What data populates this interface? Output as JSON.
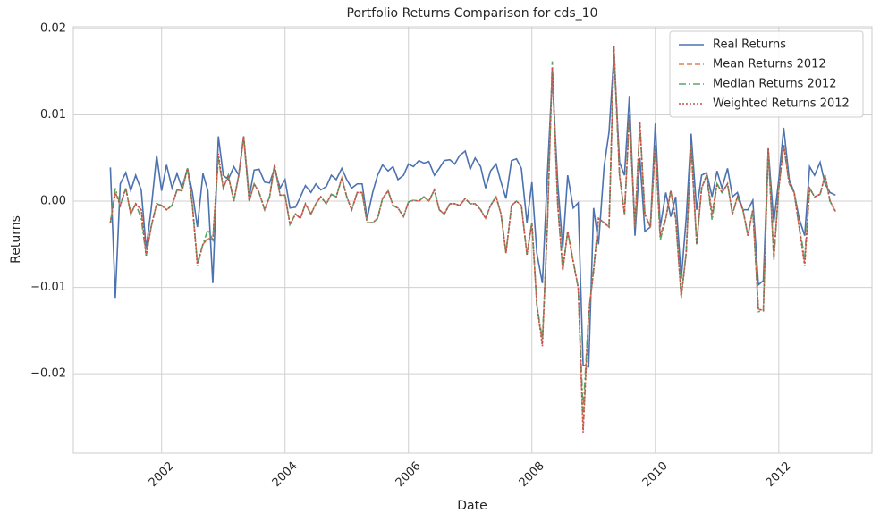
{
  "chart_data": {
    "type": "line",
    "title": "Portfolio Returns Comparison for cds_10",
    "x_label": "Date",
    "y_label": "Returns",
    "xlim": [
      2000.57,
      2013.51
    ],
    "xticks": [
      2002,
      2004,
      2006,
      2008,
      2010,
      2012
    ],
    "ylim": [
      -0.0292,
      0.0202
    ],
    "yticks": [
      {
        "value": -0.02,
        "label": "−0.02"
      },
      {
        "value": -0.01,
        "label": "−0.01"
      },
      {
        "value": 0,
        "label": "0.00"
      },
      0.01,
      0.02
    ],
    "grid": true,
    "legend": "upper right",
    "x": [
      2001.17,
      2001.25,
      2001.33,
      2001.42,
      2001.5,
      2001.58,
      2001.67,
      2001.75,
      2001.83,
      2001.92,
      2002.0,
      2002.08,
      2002.17,
      2002.25,
      2002.33,
      2002.42,
      2002.5,
      2002.58,
      2002.67,
      2002.75,
      2002.83,
      2002.92,
      2003.0,
      2003.08,
      2003.17,
      2003.25,
      2003.33,
      2003.42,
      2003.5,
      2003.58,
      2003.67,
      2003.75,
      2003.83,
      2003.92,
      2004.0,
      2004.08,
      2004.17,
      2004.25,
      2004.33,
      2004.42,
      2004.5,
      2004.58,
      2004.67,
      2004.75,
      2004.83,
      2004.92,
      2005.0,
      2005.08,
      2005.17,
      2005.25,
      2005.33,
      2005.42,
      2005.5,
      2005.58,
      2005.67,
      2005.75,
      2005.83,
      2005.92,
      2006.0,
      2006.08,
      2006.17,
      2006.25,
      2006.33,
      2006.42,
      2006.5,
      2006.58,
      2006.67,
      2006.75,
      2006.83,
      2006.92,
      2007.0,
      2007.08,
      2007.17,
      2007.25,
      2007.33,
      2007.42,
      2007.5,
      2007.58,
      2007.67,
      2007.75,
      2007.83,
      2007.92,
      2008.0,
      2008.08,
      2008.17,
      2008.25,
      2008.33,
      2008.42,
      2008.5,
      2008.58,
      2008.67,
      2008.75,
      2008.83,
      2008.92,
      2009.0,
      2009.08,
      2009.17,
      2009.25,
      2009.33,
      2009.42,
      2009.5,
      2009.58,
      2009.67,
      2009.75,
      2009.83,
      2009.92,
      2010.0,
      2010.08,
      2010.17,
      2010.25,
      2010.33,
      2010.42,
      2010.5,
      2010.58,
      2010.67,
      2010.75,
      2010.83,
      2010.92,
      2011.0,
      2011.08,
      2011.17,
      2011.25,
      2011.33,
      2011.42,
      2011.5,
      2011.58,
      2011.67,
      2011.75,
      2011.83,
      2011.92,
      2012.0,
      2012.08,
      2012.17,
      2012.25,
      2012.33,
      2012.42,
      2012.5,
      2012.58,
      2012.67,
      2012.75,
      2012.83,
      2012.92
    ],
    "series": [
      {
        "name": "Real Returns",
        "color": "#4c72b0",
        "dash": "none",
        "values": [
          0.0039,
          -0.0112,
          0.002,
          0.0033,
          0.0012,
          0.003,
          0.0013,
          -0.0055,
          -0.001,
          0.0053,
          0.0012,
          0.0042,
          0.0015,
          0.0032,
          0.0015,
          0.0038,
          0.001,
          -0.003,
          0.0032,
          0.0012,
          -0.0095,
          0.0075,
          0.003,
          0.0025,
          0.004,
          0.003,
          0.0075,
          0.0005,
          0.0036,
          0.0037,
          0.0022,
          0.0021,
          0.0038,
          0.0015,
          0.0025,
          -0.0008,
          -0.0007,
          0.0005,
          0.0018,
          0.001,
          0.002,
          0.0013,
          0.0017,
          0.003,
          0.0025,
          0.0038,
          0.0025,
          0.0015,
          0.002,
          0.002,
          -0.002,
          0.001,
          0.003,
          0.0042,
          0.0035,
          0.004,
          0.0025,
          0.003,
          0.0043,
          0.004,
          0.0047,
          0.0044,
          0.0046,
          0.003,
          0.0038,
          0.0047,
          0.0048,
          0.0043,
          0.0053,
          0.0058,
          0.0037,
          0.005,
          0.004,
          0.0015,
          0.0035,
          0.0043,
          0.0022,
          0.0003,
          0.0047,
          0.0049,
          0.0038,
          -0.0025,
          0.0022,
          -0.006,
          -0.0095,
          0.003,
          0.0145,
          0.002,
          -0.0055,
          0.003,
          -0.0008,
          -0.0002,
          -0.019,
          -0.0192,
          -0.0008,
          -0.005,
          0.004,
          0.008,
          0.017,
          0.0045,
          0.003,
          0.0122,
          -0.004,
          0.005,
          -0.0035,
          -0.003,
          0.009,
          -0.003,
          0.001,
          -0.0018,
          0.0005,
          -0.009,
          -0.002,
          0.0078,
          -0.001,
          0.003,
          0.0033,
          0.0005,
          0.0035,
          0.0015,
          0.0038,
          0.0005,
          0.001,
          -0.001,
          -0.001,
          0.0001,
          -0.0097,
          -0.0092,
          0.006,
          -0.0025,
          0.0025,
          0.0085,
          0.0025,
          0.001,
          -0.002,
          -0.004,
          0.004,
          0.003,
          0.0045,
          0.002,
          0.001,
          0.0007
        ]
      },
      {
        "name": "Mean Returns 2012",
        "color": "#dd8452",
        "dash": "6,3",
        "values": [
          -0.0025,
          0.001,
          -0.0005,
          0.0015,
          -0.0015,
          -0.0003,
          -0.001,
          -0.0063,
          -0.003,
          -0.0003,
          -0.0005,
          -0.001,
          -0.0005,
          0.0013,
          0.0012,
          0.0038,
          -0.0005,
          -0.0072,
          -0.005,
          -0.0043,
          -0.0045,
          0.005,
          0.0015,
          0.003,
          0.0,
          0.003,
          0.0075,
          0.0,
          0.002,
          0.001,
          -0.001,
          0.0005,
          0.0042,
          0.0007,
          0.0007,
          -0.0027,
          -0.0015,
          -0.002,
          -0.0003,
          -0.0015,
          -0.0003,
          0.0005,
          -0.0003,
          0.0008,
          0.0005,
          0.0027,
          0.0005,
          -0.001,
          0.001,
          0.001,
          -0.0025,
          -0.0025,
          -0.002,
          0.0003,
          0.0012,
          -0.0005,
          -0.0008,
          -0.0018,
          -0.0001,
          0.0001,
          0.0,
          0.0005,
          0.0,
          0.0013,
          -0.001,
          -0.0015,
          -0.0003,
          -0.0003,
          -0.0005,
          0.0003,
          -0.0003,
          -0.0003,
          -0.001,
          -0.002,
          -0.0005,
          0.0005,
          -0.0015,
          -0.006,
          -0.0005,
          0.0,
          -0.0005,
          -0.0062,
          -0.0025,
          -0.012,
          -0.0165,
          -0.003,
          0.0155,
          -0.0005,
          -0.008,
          -0.0035,
          -0.007,
          -0.01,
          -0.0265,
          -0.013,
          -0.008,
          -0.002,
          -0.0025,
          -0.003,
          0.0178,
          0.003,
          -0.0015,
          0.01,
          -0.003,
          0.009,
          -0.0015,
          -0.003,
          0.0065,
          -0.004,
          -0.002,
          0.0012,
          -0.002,
          -0.011,
          -0.006,
          0.0065,
          -0.005,
          0.0015,
          0.003,
          -0.0015,
          0.002,
          0.001,
          0.002,
          -0.0015,
          0.0005,
          -0.001,
          -0.004,
          -0.001,
          -0.0125,
          -0.0127,
          0.006,
          -0.0065,
          0.0015,
          0.0065,
          0.002,
          0.001,
          -0.003,
          -0.0072,
          0.0015,
          0.0005,
          0.0008,
          0.003,
          0.0,
          -0.0012
        ]
      },
      {
        "name": "Median Returns 2012",
        "color": "#55a868",
        "dash": "8,3,2,3",
        "values": [
          -0.0025,
          0.0015,
          -0.0005,
          0.0015,
          -0.0015,
          -0.0003,
          -0.002,
          -0.0063,
          -0.003,
          -0.0003,
          -0.0005,
          -0.001,
          -0.0005,
          0.0013,
          0.0012,
          0.0038,
          -0.0005,
          -0.0072,
          -0.005,
          -0.0033,
          -0.0045,
          0.005,
          0.0015,
          0.003,
          0.0,
          0.003,
          0.0075,
          0.0,
          0.002,
          0.001,
          -0.001,
          0.0005,
          0.0042,
          0.0007,
          0.0007,
          -0.0027,
          -0.0015,
          -0.002,
          -0.0003,
          -0.0015,
          -0.0003,
          0.0005,
          -0.0003,
          0.0008,
          0.0005,
          0.0027,
          0.0005,
          -0.001,
          0.001,
          0.001,
          -0.0025,
          -0.0025,
          -0.002,
          0.0003,
          0.0012,
          -0.0005,
          -0.0008,
          -0.0018,
          -0.0001,
          0.0001,
          0.0,
          0.0005,
          0.0,
          0.0013,
          -0.001,
          -0.0015,
          -0.0003,
          -0.0003,
          -0.0005,
          0.0003,
          -0.0003,
          -0.0003,
          -0.001,
          -0.002,
          -0.0005,
          0.0005,
          -0.0015,
          -0.006,
          -0.0005,
          0.0,
          -0.0005,
          -0.0062,
          -0.0025,
          -0.012,
          -0.016,
          -0.003,
          0.0162,
          -0.0005,
          -0.008,
          -0.0035,
          -0.007,
          -0.01,
          -0.0245,
          -0.013,
          -0.008,
          -0.002,
          -0.0025,
          -0.003,
          0.017,
          0.003,
          -0.0015,
          0.01,
          -0.003,
          0.009,
          -0.0015,
          -0.003,
          0.0065,
          -0.0045,
          -0.002,
          0.0012,
          -0.002,
          -0.011,
          -0.006,
          0.0065,
          -0.005,
          0.0015,
          0.003,
          -0.0022,
          0.002,
          0.001,
          0.002,
          -0.0015,
          0.0005,
          -0.001,
          -0.004,
          -0.001,
          -0.0128,
          -0.0127,
          0.006,
          -0.0068,
          0.0015,
          0.0065,
          0.002,
          0.001,
          -0.003,
          -0.0065,
          0.0015,
          0.0005,
          0.0008,
          0.003,
          0.0,
          -0.0012
        ]
      },
      {
        "name": "Weighted Returns 2012",
        "color": "#c44e52",
        "dash": "2,2",
        "values": [
          -0.0025,
          0.001,
          -0.0005,
          0.0015,
          -0.0015,
          -0.0003,
          -0.001,
          -0.0063,
          -0.003,
          -0.0003,
          -0.0005,
          -0.001,
          -0.0005,
          0.0013,
          0.0012,
          0.0038,
          -0.0005,
          -0.0075,
          -0.005,
          -0.0043,
          -0.0045,
          0.0055,
          0.0015,
          0.003,
          0.0,
          0.003,
          0.0075,
          0.0,
          0.002,
          0.001,
          -0.001,
          0.0005,
          0.0042,
          0.0007,
          0.0007,
          -0.0027,
          -0.0015,
          -0.002,
          -0.0003,
          -0.0015,
          -0.0003,
          0.0005,
          -0.0003,
          0.0008,
          0.0005,
          0.0027,
          0.0005,
          -0.001,
          0.001,
          0.001,
          -0.0025,
          -0.0025,
          -0.002,
          0.0003,
          0.0012,
          -0.0005,
          -0.0008,
          -0.0018,
          -0.0001,
          0.0001,
          0.0,
          0.0005,
          0.0,
          0.0013,
          -0.001,
          -0.0015,
          -0.0003,
          -0.0003,
          -0.0005,
          0.0003,
          -0.0003,
          -0.0003,
          -0.001,
          -0.002,
          -0.0005,
          0.0005,
          -0.0015,
          -0.006,
          -0.0005,
          0.0,
          -0.0005,
          -0.0062,
          -0.0025,
          -0.012,
          -0.0168,
          -0.003,
          0.0155,
          -0.0005,
          -0.008,
          -0.0035,
          -0.007,
          -0.01,
          -0.0268,
          -0.013,
          -0.008,
          -0.002,
          -0.0025,
          -0.003,
          0.018,
          0.003,
          -0.0015,
          0.01,
          -0.003,
          0.0092,
          -0.0015,
          -0.003,
          0.0065,
          -0.004,
          -0.002,
          0.0012,
          -0.002,
          -0.0112,
          -0.006,
          0.0065,
          -0.005,
          0.0015,
          0.003,
          -0.0015,
          0.002,
          0.001,
          0.002,
          -0.0015,
          0.0005,
          -0.001,
          -0.004,
          -0.001,
          -0.0125,
          -0.0127,
          0.0062,
          -0.0065,
          0.0015,
          0.0065,
          0.002,
          0.001,
          -0.003,
          -0.0075,
          0.0015,
          0.0005,
          0.0008,
          0.003,
          0.0,
          -0.0012
        ]
      }
    ]
  }
}
